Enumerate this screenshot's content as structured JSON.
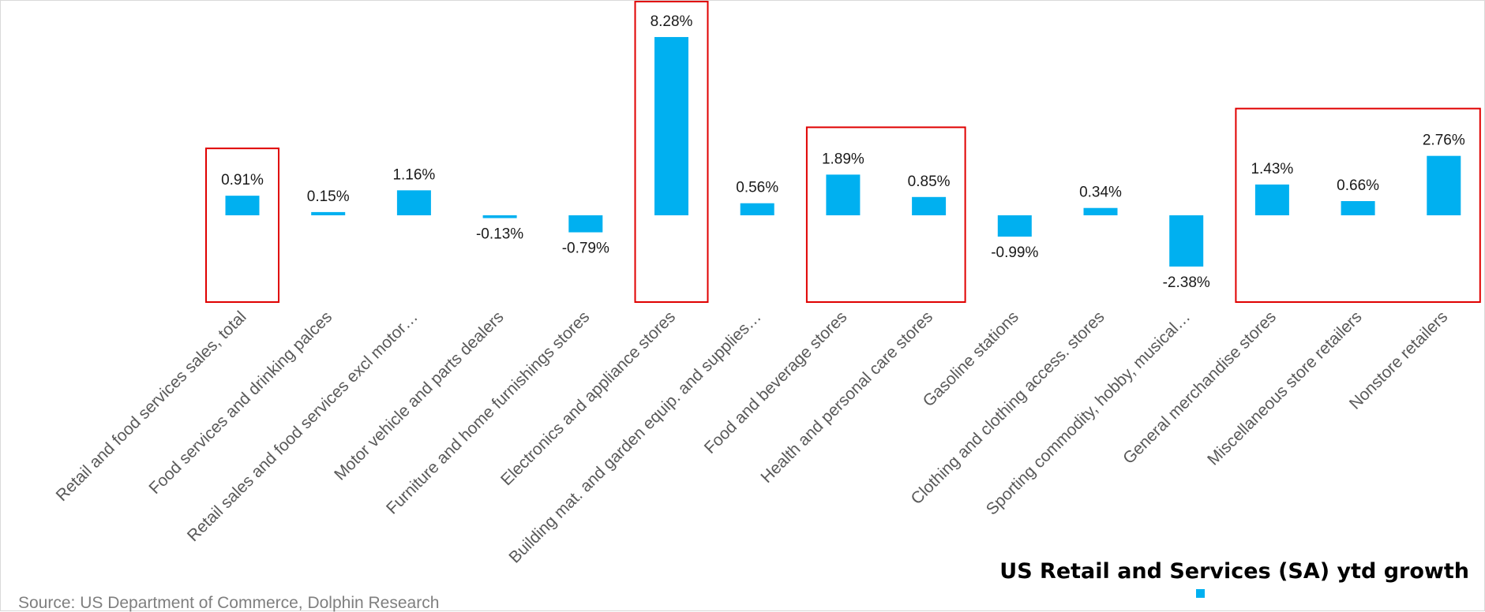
{
  "chart_data": {
    "type": "bar",
    "title": "",
    "categories": [
      "Retail and food services sales, total",
      "Food services and drinking palces",
      "Retail sales and food services excl motor…",
      "Motor vehicle and parts dealers",
      "Furniture and home furnishings stores",
      "Electronics and appliance stores",
      "Building mat. and garden equip. and supplies…",
      "Food and beverage stores",
      "Health and personal care stores",
      "Gasoline stations",
      "Clothing and clothing access. stores",
      "Sporting commodity, hobby, musical…",
      "General merchandise stores",
      "Miscellaneous store retailers",
      "Nonstore retailers"
    ],
    "series": [
      {
        "name": "US Retail and Services (SA) ytd growth",
        "values": [
          0.91,
          0.15,
          1.16,
          -0.13,
          -0.79,
          8.28,
          0.56,
          1.89,
          0.85,
          -0.99,
          0.34,
          -2.38,
          1.43,
          0.66,
          2.76
        ],
        "labels": [
          "0.91%",
          "0.15%",
          "1.16%",
          "-0.13%",
          "-0.79%",
          "8.28%",
          "0.56%",
          "1.89%",
          "0.85%",
          "-0.99%",
          "0.34%",
          "-2.38%",
          "1.43%",
          "0.66%",
          "2.76%"
        ],
        "color": "#00b0f0"
      }
    ],
    "xlabel": "",
    "ylabel": "",
    "grid": false,
    "legend": "bottom-right",
    "highlight_color": "#e00000",
    "highlighted_groups": [
      [
        0
      ],
      [
        5
      ],
      [
        7,
        8
      ],
      [
        12,
        13,
        14
      ]
    ]
  },
  "source_text": "Source: US Department of Commerce, Dolphin Research",
  "legend_title": "US Retail and Services (SA) ytd growth"
}
